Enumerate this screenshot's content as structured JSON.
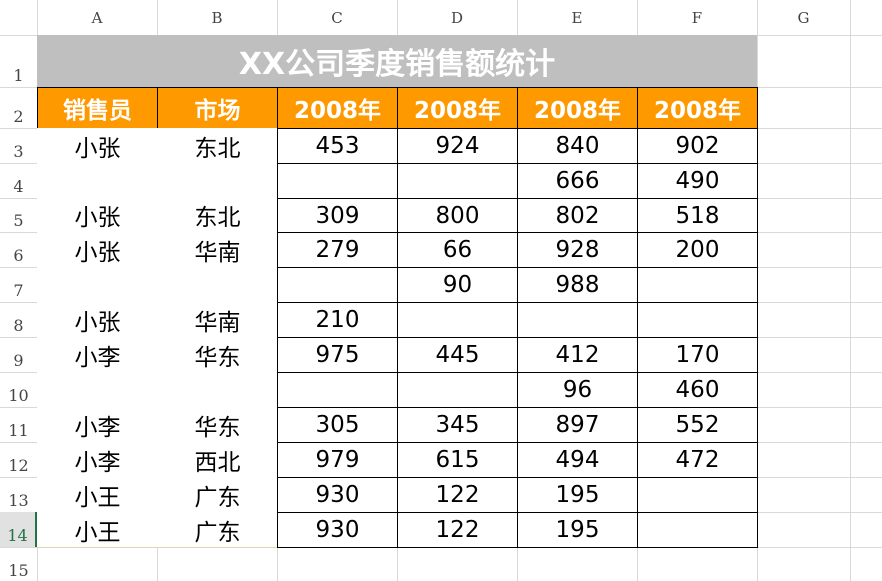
{
  "sheet": {
    "column_headers": [
      "A",
      "B",
      "C",
      "D",
      "E",
      "F",
      "G"
    ],
    "row_headers": [
      1,
      2,
      3,
      4,
      5,
      6,
      7,
      8,
      9,
      10,
      11,
      12,
      13,
      14,
      15
    ],
    "title": "XX公司季度销售额统计",
    "header": [
      "销售员",
      "市场",
      "2008年",
      "2008年",
      "2008年",
      "2008年"
    ],
    "rows": [
      [
        "小张",
        "东北",
        453,
        924,
        840,
        902
      ],
      [
        null,
        null,
        null,
        null,
        666,
        490
      ],
      [
        "小张",
        "东北",
        309,
        800,
        802,
        518
      ],
      [
        "小张",
        "华南",
        279,
        66,
        928,
        200
      ],
      [
        null,
        null,
        null,
        90,
        988,
        null
      ],
      [
        "小张",
        "华南",
        210,
        null,
        null,
        null
      ],
      [
        "小李",
        "华东",
        975,
        445,
        412,
        170
      ],
      [
        null,
        null,
        null,
        null,
        96,
        460
      ],
      [
        "小李",
        "华东",
        305,
        345,
        897,
        552
      ],
      [
        "小李",
        "西北",
        979,
        615,
        494,
        472
      ],
      [
        "小王",
        "广东",
        930,
        122,
        195,
        null
      ],
      [
        "小王",
        "广东",
        930,
        122,
        195,
        null
      ]
    ]
  }
}
